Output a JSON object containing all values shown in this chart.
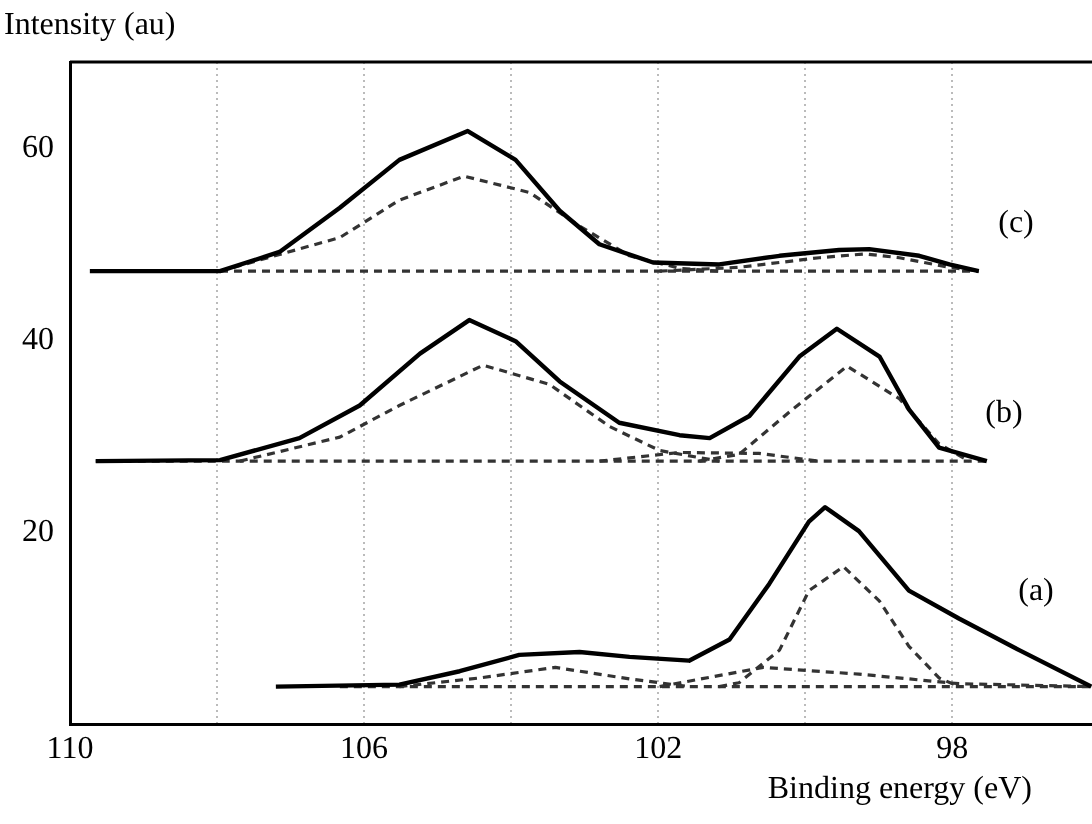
{
  "chart_data": {
    "type": "line",
    "xlabel": "Binding energy (eV)",
    "ylabel": "Intensity (au)",
    "xlim": [
      110,
      96.1
    ],
    "ylim": [
      0,
      69
    ],
    "xticks": [
      110,
      {
        "value": 108,
        "label": null
      },
      106,
      {
        "value": 104,
        "label": null
      },
      102,
      {
        "value": 100,
        "label": null
      },
      98
    ],
    "yticks": [
      20,
      40,
      60
    ],
    "grid": "x",
    "legend": false,
    "marker": "none",
    "line_style": "solid",
    "annotations": [
      "(c)",
      "(b)",
      "(a)"
    ],
    "series": [
      {
        "color": "#000000",
        "x": [
          109.73,
          107.96,
          107.15,
          106.33,
          105.52,
          104.59,
          103.94,
          103.34,
          102.8,
          102.07,
          101.17,
          100.35,
          99.54,
          99.13,
          98.45,
          98.04,
          97.64
        ],
        "values": [
          47.2,
          47.2,
          49.2,
          53.8,
          58.8,
          61.8,
          58.8,
          53.5,
          50,
          48.1,
          47.9,
          48.8,
          49.4,
          49.5,
          48.8,
          47.9,
          47.2
        ]
      },
      {
        "color": "#333333",
        "line_style": "dashed",
        "x": [
          107.96,
          106.33,
          105.52,
          104.64,
          103.75,
          103.07,
          102.39,
          101.71,
          101.17
        ],
        "values": [
          47.2,
          50.7,
          54.6,
          57.1,
          55.4,
          51.9,
          48.8,
          47.5,
          47.2
        ]
      },
      {
        "color": "#333333",
        "line_style": "dashed",
        "x": [
          101.98,
          100.9,
          99.81,
          99.19,
          98.72,
          98.04,
          97.64
        ],
        "values": [
          47.2,
          47.6,
          48.6,
          49,
          48.6,
          47.6,
          47.2
        ]
      },
      {
        "color": "#333333",
        "line_style": "dashed",
        "x": [
          107.96,
          97.64
        ],
        "values": [
          47.2,
          47.2
        ]
      },
      {
        "color": "#000000",
        "x": [
          109.65,
          107.96,
          106.88,
          106.06,
          105.24,
          104.57,
          103.94,
          103.34,
          102.53,
          101.71,
          101.3,
          100.76,
          100.08,
          99.57,
          98.99,
          98.59,
          98.18,
          97.53
        ],
        "values": [
          27.4,
          27.5,
          29.8,
          33.2,
          38.6,
          42.1,
          39.9,
          35.7,
          31.4,
          30.1,
          29.8,
          32.1,
          38.3,
          41.2,
          38.3,
          32.8,
          28.8,
          27.4
        ]
      },
      {
        "color": "#333333",
        "line_style": "dashed",
        "x": [
          107.69,
          106.33,
          105.52,
          104.38,
          103.48,
          102.66,
          101.98,
          101.17
        ],
        "values": [
          27.4,
          29.9,
          33.2,
          37.4,
          35.4,
          31,
          28.5,
          27.4
        ]
      },
      {
        "color": "#333333",
        "line_style": "dashed",
        "x": [
          101.44,
          100.9,
          100.22,
          99.43,
          98.72,
          98.18,
          97.77
        ],
        "values": [
          27.4,
          28.1,
          32.5,
          37.3,
          33.9,
          29.2,
          27.4
        ]
      },
      {
        "color": "#333333",
        "line_style": "dashed",
        "x": [
          102.8,
          101.71,
          100.63,
          99.81
        ],
        "values": [
          27.4,
          28.3,
          28.2,
          27.4
        ]
      },
      {
        "color": "#333333",
        "line_style": "dashed",
        "x": [
          109.65,
          97.53
        ],
        "values": [
          27.4,
          27.4
        ]
      },
      {
        "color": "#000000",
        "x": [
          107.2,
          105.52,
          104.7,
          103.89,
          103.07,
          102.39,
          101.58,
          101.03,
          100.49,
          99.95,
          99.73,
          99.27,
          98.59,
          97.91,
          97.09,
          96.11
        ],
        "values": [
          3.9,
          4.1,
          5.5,
          7.2,
          7.5,
          7,
          6.6,
          8.8,
          14.6,
          21.1,
          22.6,
          20.1,
          13.9,
          11,
          7.7,
          3.9
        ]
      },
      {
        "color": "#333333",
        "line_style": "dashed",
        "x": [
          105.52,
          104.43,
          103.4,
          102.39,
          101.58
        ],
        "values": [
          3.9,
          4.8,
          5.9,
          4.7,
          3.9
        ]
      },
      {
        "color": "#333333",
        "line_style": "dashed",
        "x": [
          101.17,
          100.9,
          100.35,
          99.95,
          99.48,
          98.99,
          98.59,
          98.18,
          97.91
        ],
        "values": [
          3.9,
          4.3,
          7.7,
          13.9,
          16.4,
          12.8,
          8.1,
          4.8,
          3.9
        ]
      },
      {
        "color": "#333333",
        "line_style": "dashed",
        "x": [
          101.98,
          100.57,
          99.27,
          97.91,
          96.11
        ],
        "values": [
          3.9,
          5.9,
          5.2,
          4.2,
          3.9
        ]
      },
      {
        "color": "#333333",
        "line_style": "dashed",
        "x": [
          106.33,
          96.11
        ],
        "values": [
          3.9,
          3.9
        ]
      }
    ]
  }
}
